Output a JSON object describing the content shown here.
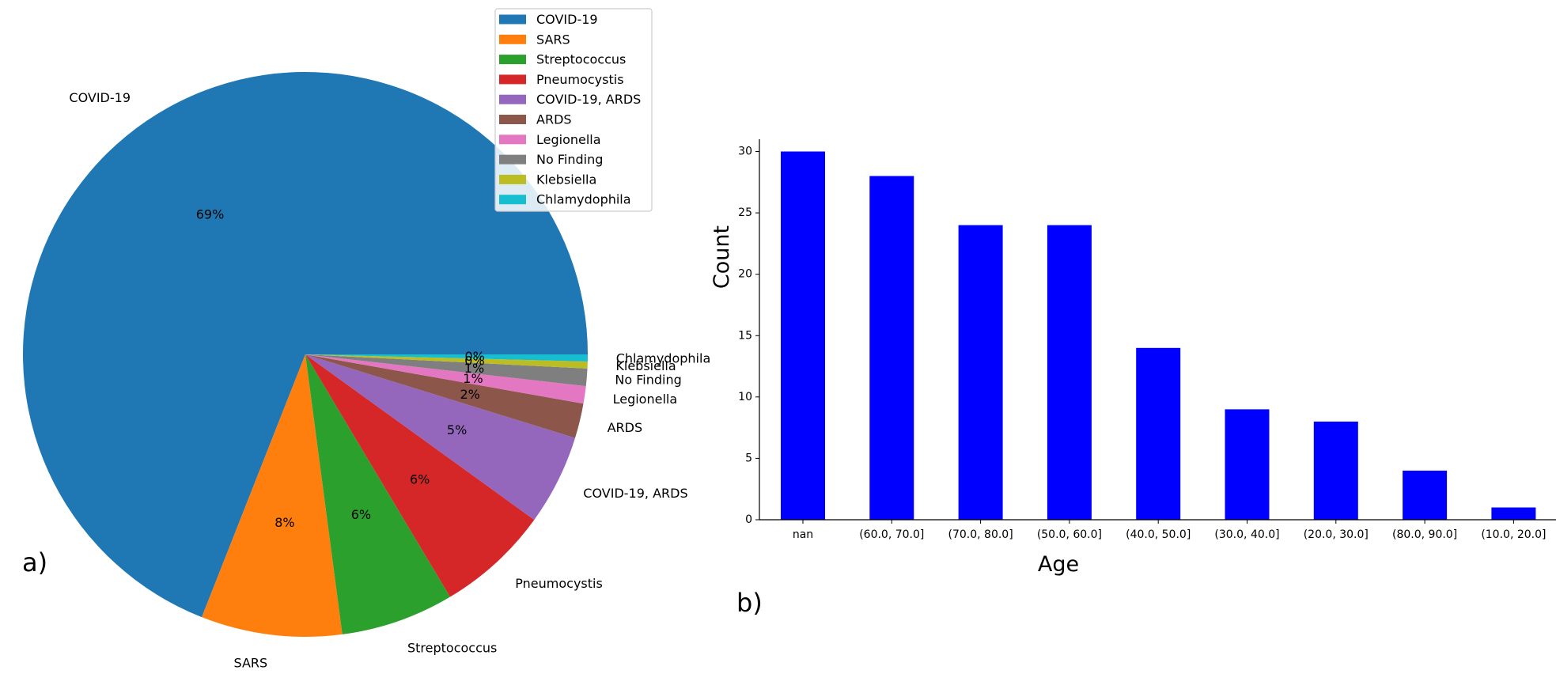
{
  "chart_data": [
    {
      "type": "pie",
      "panel_label": "a)",
      "categories": [
        "COVID-19",
        "SARS",
        "Streptococcus",
        "Pneumocystis",
        "COVID-19, ARDS",
        "ARDS",
        "Legionella",
        "No Finding",
        "Klebsiella",
        "Chlamydophila"
      ],
      "values": [
        69.3,
        8.1,
        6.5,
        6.5,
        5.2,
        2.0,
        1.0,
        1.0,
        0.4,
        0.4
      ],
      "pct_labels": [
        "69%",
        "8%",
        "6%",
        "6%",
        "5%",
        "2%",
        "1%",
        "1%",
        "0%",
        "0%"
      ],
      "colors": [
        "#1f77b4",
        "#ff7f0e",
        "#2ca02c",
        "#d62728",
        "#9467bd",
        "#8c564b",
        "#e377c2",
        "#7f7f7f",
        "#bcbd22",
        "#17becf"
      ],
      "start_angle_deg": 0,
      "direction": "counterclockwise",
      "legend": {
        "placement": "top-right",
        "entries": [
          "COVID-19",
          "SARS",
          "Streptococcus",
          "Pneumocystis",
          "COVID-19, ARDS",
          "ARDS",
          "Legionella",
          "No Finding",
          "Klebsiella",
          "Chlamydophila"
        ]
      }
    },
    {
      "type": "bar",
      "panel_label": "b)",
      "categories": [
        "nan",
        "(60.0, 70.0]",
        "(70.0, 80.0]",
        "(50.0, 60.0]",
        "(40.0, 50.0]",
        "(30.0, 40.0]",
        "(20.0, 30.0]",
        "(80.0, 90.0]",
        "(10.0, 20.0]"
      ],
      "values": [
        30,
        28,
        24,
        24,
        14,
        9,
        8,
        4,
        1
      ],
      "color": "#0000ff",
      "xlabel": "Age",
      "ylabel": "Count",
      "ylim": [
        0,
        31
      ],
      "yticks": [
        0,
        5,
        10,
        15,
        20,
        25,
        30
      ],
      "grid": false
    }
  ]
}
